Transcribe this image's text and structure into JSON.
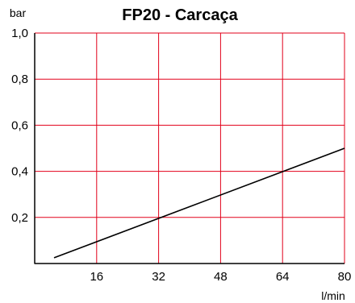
{
  "chart_data": {
    "type": "line",
    "title": "FP20 - Carcaça",
    "xlabel": "l/min",
    "ylabel": "bar",
    "xlim": [
      0,
      80
    ],
    "ylim": [
      0,
      1.0
    ],
    "x_ticks": [
      16,
      32,
      48,
      64,
      80
    ],
    "x_tick_labels": [
      "16",
      "32",
      "48",
      "64",
      "80"
    ],
    "y_ticks": [
      0.2,
      0.4,
      0.6,
      0.8,
      1.0
    ],
    "y_tick_labels": [
      "0,2",
      "0,4",
      "0,6",
      "0,8",
      "1,0"
    ],
    "grid": true,
    "series": [
      {
        "x": [
          5,
          80
        ],
        "y": [
          0.025,
          0.5
        ]
      }
    ],
    "colors": {
      "grid": "#e2001a",
      "axis": "#000000",
      "line": "#000000"
    }
  }
}
